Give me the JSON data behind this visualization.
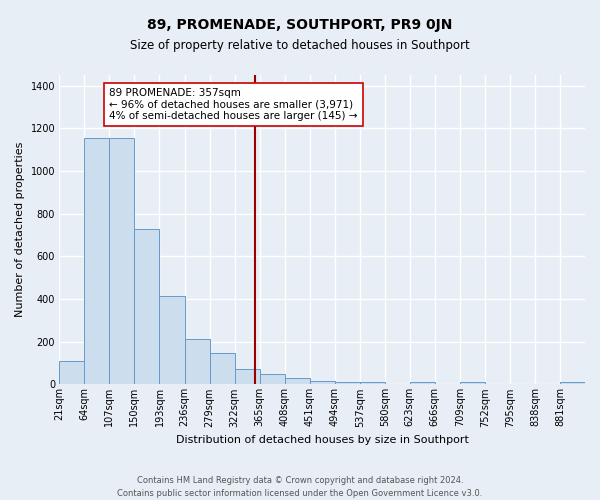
{
  "title": "89, PROMENADE, SOUTHPORT, PR9 0JN",
  "subtitle": "Size of property relative to detached houses in Southport",
  "xlabel": "Distribution of detached houses by size in Southport",
  "ylabel": "Number of detached properties",
  "bin_labels": [
    "21sqm",
    "64sqm",
    "107sqm",
    "150sqm",
    "193sqm",
    "236sqm",
    "279sqm",
    "322sqm",
    "365sqm",
    "408sqm",
    "451sqm",
    "494sqm",
    "537sqm",
    "580sqm",
    "623sqm",
    "666sqm",
    "709sqm",
    "752sqm",
    "795sqm",
    "838sqm",
    "881sqm"
  ],
  "bin_edges": [
    21,
    64,
    107,
    150,
    193,
    236,
    279,
    322,
    365,
    408,
    451,
    494,
    537,
    580,
    623,
    666,
    709,
    752,
    795,
    838,
    881
  ],
  "bar_heights": [
    108,
    1155,
    1155,
    730,
    415,
    215,
    148,
    70,
    50,
    28,
    18,
    12,
    12,
    0,
    10,
    0,
    12,
    0,
    0,
    0,
    12
  ],
  "bar_color": "#ccdded",
  "bar_edge_color": "#6699cc",
  "property_size": 357,
  "vline_color": "#990000",
  "annotation_text": "89 PROMENADE: 357sqm\n← 96% of detached houses are smaller (3,971)\n4% of semi-detached houses are larger (145) →",
  "annotation_box_edge_color": "#cc0000",
  "annotation_box_face_color": "#ffffff",
  "ylim": [
    0,
    1450
  ],
  "yticks": [
    0,
    200,
    400,
    600,
    800,
    1000,
    1200,
    1400
  ],
  "footer_line1": "Contains HM Land Registry data © Crown copyright and database right 2024.",
  "footer_line2": "Contains public sector information licensed under the Open Government Licence v3.0.",
  "background_color": "#e8eef5",
  "plot_bg_color": "#e8eef5",
  "grid_color": "#ffffff",
  "title_fontsize": 10,
  "subtitle_fontsize": 8.5,
  "axis_label_fontsize": 8,
  "tick_fontsize": 7,
  "annotation_fontsize": 7.5,
  "footer_fontsize": 6
}
